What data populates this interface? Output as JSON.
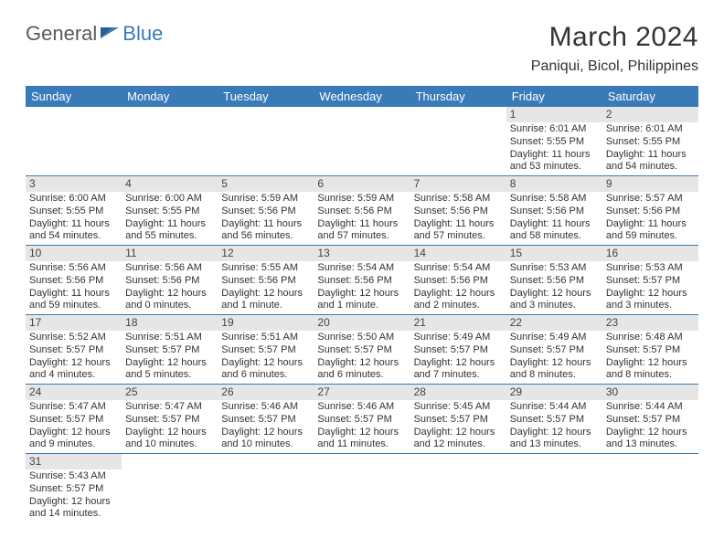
{
  "logo": {
    "text1": "General",
    "text2": "Blue"
  },
  "title": "March 2024",
  "location": "Paniqui, Bicol, Philippines",
  "colors": {
    "header_bg": "#3a7ab8",
    "daynum_bg": "#e6e6e6",
    "border": "#3a7ab8",
    "text": "#333333"
  },
  "weekdays": [
    "Sunday",
    "Monday",
    "Tuesday",
    "Wednesday",
    "Thursday",
    "Friday",
    "Saturday"
  ],
  "weeks": [
    [
      null,
      null,
      null,
      null,
      null,
      {
        "n": "1",
        "sr": "Sunrise: 6:01 AM",
        "ss": "Sunset: 5:55 PM",
        "dl": "Daylight: 11 hours and 53 minutes."
      },
      {
        "n": "2",
        "sr": "Sunrise: 6:01 AM",
        "ss": "Sunset: 5:55 PM",
        "dl": "Daylight: 11 hours and 54 minutes."
      }
    ],
    [
      {
        "n": "3",
        "sr": "Sunrise: 6:00 AM",
        "ss": "Sunset: 5:55 PM",
        "dl": "Daylight: 11 hours and 54 minutes."
      },
      {
        "n": "4",
        "sr": "Sunrise: 6:00 AM",
        "ss": "Sunset: 5:55 PM",
        "dl": "Daylight: 11 hours and 55 minutes."
      },
      {
        "n": "5",
        "sr": "Sunrise: 5:59 AM",
        "ss": "Sunset: 5:56 PM",
        "dl": "Daylight: 11 hours and 56 minutes."
      },
      {
        "n": "6",
        "sr": "Sunrise: 5:59 AM",
        "ss": "Sunset: 5:56 PM",
        "dl": "Daylight: 11 hours and 57 minutes."
      },
      {
        "n": "7",
        "sr": "Sunrise: 5:58 AM",
        "ss": "Sunset: 5:56 PM",
        "dl": "Daylight: 11 hours and 57 minutes."
      },
      {
        "n": "8",
        "sr": "Sunrise: 5:58 AM",
        "ss": "Sunset: 5:56 PM",
        "dl": "Daylight: 11 hours and 58 minutes."
      },
      {
        "n": "9",
        "sr": "Sunrise: 5:57 AM",
        "ss": "Sunset: 5:56 PM",
        "dl": "Daylight: 11 hours and 59 minutes."
      }
    ],
    [
      {
        "n": "10",
        "sr": "Sunrise: 5:56 AM",
        "ss": "Sunset: 5:56 PM",
        "dl": "Daylight: 11 hours and 59 minutes."
      },
      {
        "n": "11",
        "sr": "Sunrise: 5:56 AM",
        "ss": "Sunset: 5:56 PM",
        "dl": "Daylight: 12 hours and 0 minutes."
      },
      {
        "n": "12",
        "sr": "Sunrise: 5:55 AM",
        "ss": "Sunset: 5:56 PM",
        "dl": "Daylight: 12 hours and 1 minute."
      },
      {
        "n": "13",
        "sr": "Sunrise: 5:54 AM",
        "ss": "Sunset: 5:56 PM",
        "dl": "Daylight: 12 hours and 1 minute."
      },
      {
        "n": "14",
        "sr": "Sunrise: 5:54 AM",
        "ss": "Sunset: 5:56 PM",
        "dl": "Daylight: 12 hours and 2 minutes."
      },
      {
        "n": "15",
        "sr": "Sunrise: 5:53 AM",
        "ss": "Sunset: 5:56 PM",
        "dl": "Daylight: 12 hours and 3 minutes."
      },
      {
        "n": "16",
        "sr": "Sunrise: 5:53 AM",
        "ss": "Sunset: 5:57 PM",
        "dl": "Daylight: 12 hours and 3 minutes."
      }
    ],
    [
      {
        "n": "17",
        "sr": "Sunrise: 5:52 AM",
        "ss": "Sunset: 5:57 PM",
        "dl": "Daylight: 12 hours and 4 minutes."
      },
      {
        "n": "18",
        "sr": "Sunrise: 5:51 AM",
        "ss": "Sunset: 5:57 PM",
        "dl": "Daylight: 12 hours and 5 minutes."
      },
      {
        "n": "19",
        "sr": "Sunrise: 5:51 AM",
        "ss": "Sunset: 5:57 PM",
        "dl": "Daylight: 12 hours and 6 minutes."
      },
      {
        "n": "20",
        "sr": "Sunrise: 5:50 AM",
        "ss": "Sunset: 5:57 PM",
        "dl": "Daylight: 12 hours and 6 minutes."
      },
      {
        "n": "21",
        "sr": "Sunrise: 5:49 AM",
        "ss": "Sunset: 5:57 PM",
        "dl": "Daylight: 12 hours and 7 minutes."
      },
      {
        "n": "22",
        "sr": "Sunrise: 5:49 AM",
        "ss": "Sunset: 5:57 PM",
        "dl": "Daylight: 12 hours and 8 minutes."
      },
      {
        "n": "23",
        "sr": "Sunrise: 5:48 AM",
        "ss": "Sunset: 5:57 PM",
        "dl": "Daylight: 12 hours and 8 minutes."
      }
    ],
    [
      {
        "n": "24",
        "sr": "Sunrise: 5:47 AM",
        "ss": "Sunset: 5:57 PM",
        "dl": "Daylight: 12 hours and 9 minutes."
      },
      {
        "n": "25",
        "sr": "Sunrise: 5:47 AM",
        "ss": "Sunset: 5:57 PM",
        "dl": "Daylight: 12 hours and 10 minutes."
      },
      {
        "n": "26",
        "sr": "Sunrise: 5:46 AM",
        "ss": "Sunset: 5:57 PM",
        "dl": "Daylight: 12 hours and 10 minutes."
      },
      {
        "n": "27",
        "sr": "Sunrise: 5:46 AM",
        "ss": "Sunset: 5:57 PM",
        "dl": "Daylight: 12 hours and 11 minutes."
      },
      {
        "n": "28",
        "sr": "Sunrise: 5:45 AM",
        "ss": "Sunset: 5:57 PM",
        "dl": "Daylight: 12 hours and 12 minutes."
      },
      {
        "n": "29",
        "sr": "Sunrise: 5:44 AM",
        "ss": "Sunset: 5:57 PM",
        "dl": "Daylight: 12 hours and 13 minutes."
      },
      {
        "n": "30",
        "sr": "Sunrise: 5:44 AM",
        "ss": "Sunset: 5:57 PM",
        "dl": "Daylight: 12 hours and 13 minutes."
      }
    ],
    [
      {
        "n": "31",
        "sr": "Sunrise: 5:43 AM",
        "ss": "Sunset: 5:57 PM",
        "dl": "Daylight: 12 hours and 14 minutes."
      },
      null,
      null,
      null,
      null,
      null,
      null
    ]
  ]
}
